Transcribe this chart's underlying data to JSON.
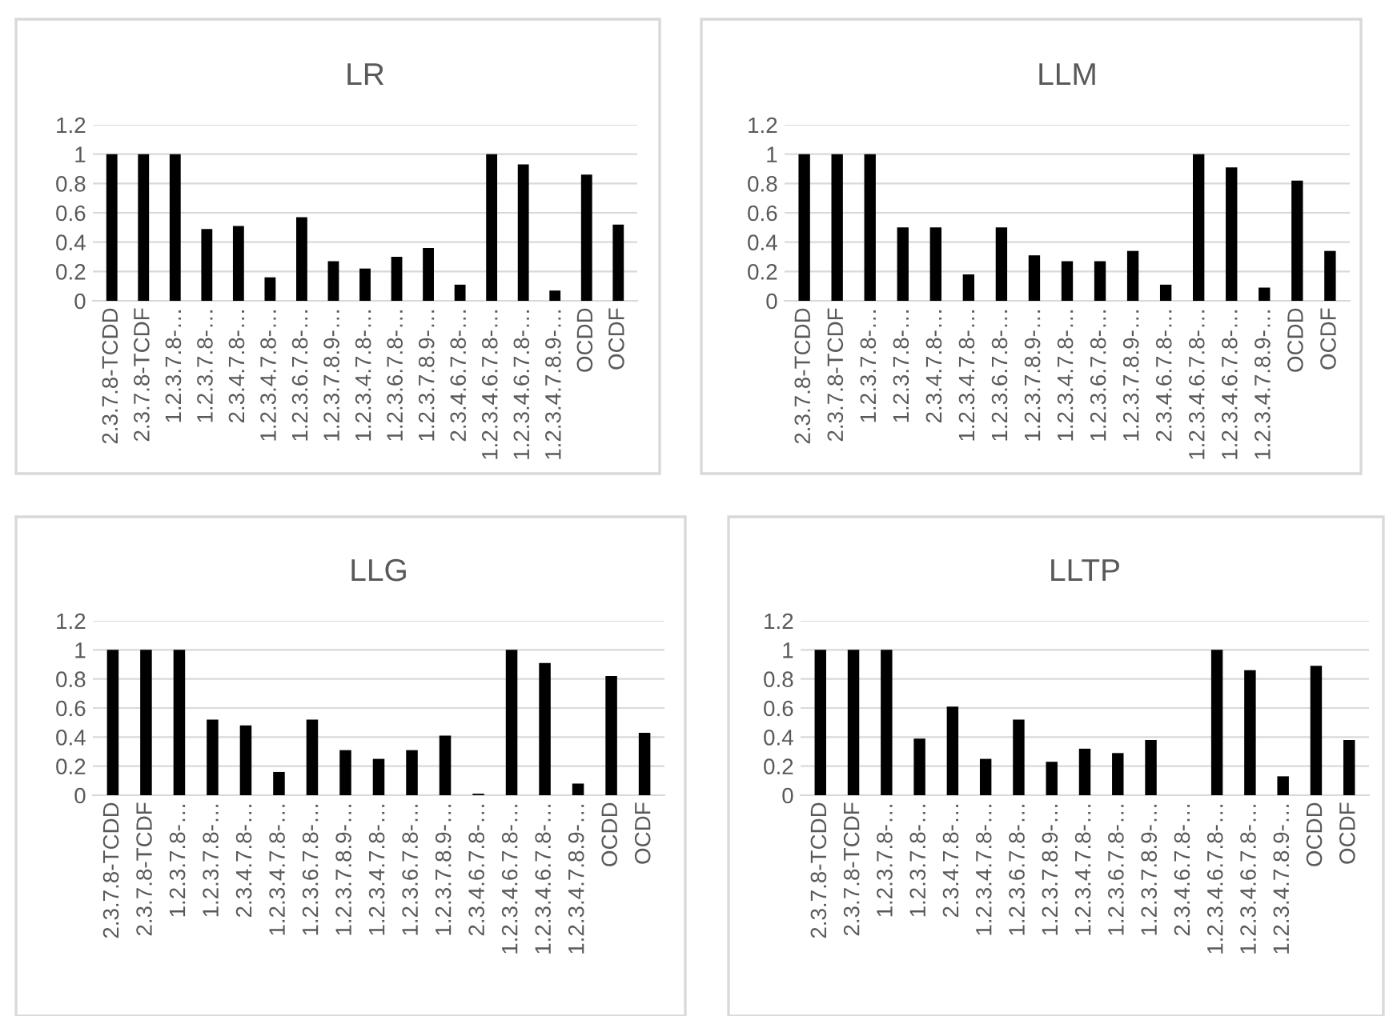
{
  "chart_data": [
    {
      "type": "bar",
      "title": "LR",
      "categories": [
        "2.3.7.8-TCDD",
        "2.3.7.8-TCDF",
        "1.2.3.7.8-…",
        "1.2.3.7.8-…",
        "2.3.4.7.8-…",
        "1.2.3.4.7.8-…",
        "1.2.3.6.7.8-…",
        "1.2.3.7.8.9-…",
        "1.2.3.4.7.8-…",
        "1.2.3.6.7.8-…",
        "1.2.3.7.8.9-…",
        "2.3.4.6.7.8-…",
        "1.2.3.4.6.7.8-…",
        "1.2.3.4.6.7.8-…",
        "1.2.3.4.7.8.9-…",
        "OCDD",
        "OCDF"
      ],
      "values": [
        1,
        1,
        1,
        0.49,
        0.51,
        0.16,
        0.57,
        0.27,
        0.22,
        0.3,
        0.36,
        0.11,
        1,
        0.93,
        0.07,
        0.86,
        0.52
      ],
      "color": "#000000",
      "ylim": [
        0,
        1.2
      ],
      "yticks": [
        0,
        0.2,
        0.4,
        0.6,
        0.8,
        1,
        1.2
      ],
      "grid": "y"
    },
    {
      "type": "bar",
      "title": "LLM",
      "categories": [
        "2.3.7.8-TCDD",
        "2.3.7.8-TCDF",
        "1.2.3.7.8-…",
        "1.2.3.7.8-…",
        "2.3.4.7.8-…",
        "1.2.3.4.7.8-…",
        "1.2.3.6.7.8-…",
        "1.2.3.7.8.9-…",
        "1.2.3.4.7.8-…",
        "1.2.3.6.7.8-…",
        "1.2.3.7.8.9-…",
        "2.3.4.6.7.8-…",
        "1.2.3.4.6.7.8-…",
        "1.2.3.4.6.7.8-…",
        "1.2.3.4.7.8.9-…",
        "OCDD",
        "OCDF"
      ],
      "values": [
        1,
        1,
        1,
        0.5,
        0.5,
        0.18,
        0.5,
        0.31,
        0.27,
        0.27,
        0.34,
        0.11,
        1,
        0.91,
        0.09,
        0.82,
        0.34
      ],
      "color": "#000000",
      "ylim": [
        0,
        1.2
      ],
      "yticks": [
        0,
        0.2,
        0.4,
        0.6,
        0.8,
        1,
        1.2
      ],
      "grid": "y"
    },
    {
      "type": "bar",
      "title": "LLG",
      "categories": [
        "2.3.7.8-TCDD",
        "2.3.7.8-TCDF",
        "1.2.3.7.8-…",
        "1.2.3.7.8-…",
        "2.3.4.7.8-…",
        "1.2.3.4.7.8-…",
        "1.2.3.6.7.8-…",
        "1.2.3.7.8.9-…",
        "1.2.3.4.7.8-…",
        "1.2.3.6.7.8-…",
        "1.2.3.7.8.9-…",
        "2.3.4.6.7.8-…",
        "1.2.3.4.6.7.8-…",
        "1.2.3.4.6.7.8-…",
        "1.2.3.4.7.8.9-…",
        "OCDD",
        "OCDF"
      ],
      "values": [
        1,
        1,
        1,
        0.52,
        0.48,
        0.16,
        0.52,
        0.31,
        0.25,
        0.31,
        0.41,
        0.01,
        1,
        0.91,
        0.08,
        0.82,
        0.43
      ],
      "color": "#000000",
      "ylim": [
        0,
        1.2
      ],
      "yticks": [
        0,
        0.2,
        0.4,
        0.6,
        0.8,
        1,
        1.2
      ],
      "grid": "y"
    },
    {
      "type": "bar",
      "title": "LLTP",
      "categories": [
        "2.3.7.8-TCDD",
        "2.3.7.8-TCDF",
        "1.2.3.7.8-…",
        "1.2.3.7.8-…",
        "2.3.4.7.8-…",
        "1.2.3.4.7.8-…",
        "1.2.3.6.7.8-…",
        "1.2.3.7.8.9-…",
        "1.2.3.4.7.8-…",
        "1.2.3.6.7.8-…",
        "1.2.3.7.8.9-…",
        "2.3.4.6.7.8-…",
        "1.2.3.4.6.7.8-…",
        "1.2.3.4.6.7.8-…",
        "1.2.3.4.7.8.9-…",
        "OCDD",
        "OCDF"
      ],
      "values": [
        1,
        1,
        1,
        0.39,
        0.61,
        0.25,
        0.52,
        0.23,
        0.32,
        0.29,
        0.38,
        0,
        1,
        0.86,
        0.13,
        0.89,
        0.38
      ],
      "color": "#000000",
      "ylim": [
        0,
        1.2
      ],
      "yticks": [
        0,
        0.2,
        0.4,
        0.6,
        0.8,
        1,
        1.2
      ],
      "grid": "y"
    }
  ]
}
